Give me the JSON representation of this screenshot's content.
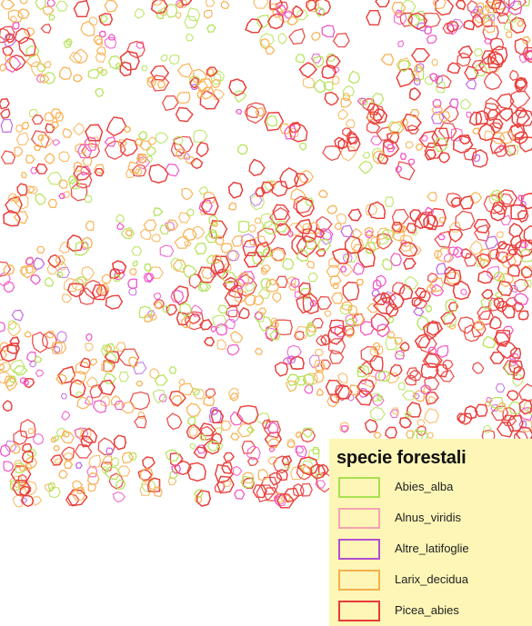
{
  "legend": {
    "title": "specie forestali",
    "items": [
      {
        "label": "Abies_alba",
        "color": "#a8e050"
      },
      {
        "label": "Alnus_viridis",
        "color": "#f4a3b4"
      },
      {
        "label": "Altre_latifoglie",
        "color": "#b04fd0"
      },
      {
        "label": "Larix_decidua",
        "color": "#f6b04a"
      },
      {
        "label": "Picea_abies",
        "color": "#e83a3a"
      }
    ]
  },
  "map": {
    "background_color": "#ffffff",
    "legend_background": "#fdf6b6",
    "crown_colors": {
      "Abies_alba": "#b6e35c",
      "Alnus_viridis": "#f05ac8",
      "Altre_latifoglie": "#c070e0",
      "Larix_decidua": "#f7b55a",
      "Picea_abies": "#e8403c"
    }
  }
}
